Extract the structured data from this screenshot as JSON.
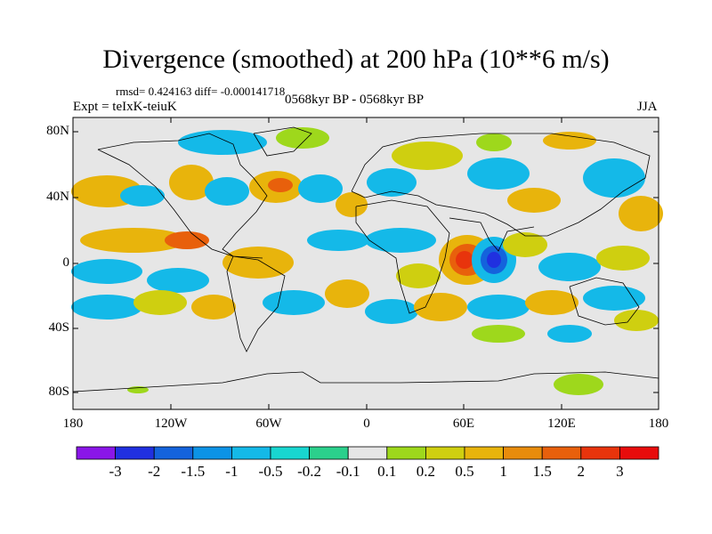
{
  "title": "Divergence (smoothed) at 200 hPa (10**6 m/s)",
  "stats": "rmsd= 0.424163 diff= -0.000141718",
  "experiment": "Expt = teIxK-teiuK",
  "period": "0568kyr BP - 0568kyr BP",
  "season": "JJA",
  "lat_labels": [
    "80N",
    "40N",
    "0",
    "40S",
    "80S"
  ],
  "lon_labels": [
    "180",
    "120W",
    "60W",
    "0",
    "60E",
    "120E",
    "180"
  ],
  "colorbar": {
    "labels": [
      "-3",
      "-2",
      "-1.5",
      "-1",
      "-0.5",
      "-0.2",
      "-0.1",
      "0.1",
      "0.2",
      "0.5",
      "1",
      "1.5",
      "2",
      "3"
    ],
    "colors": [
      "#8a16e8",
      "#2030e0",
      "#1463dc",
      "#0c93e6",
      "#14b9e8",
      "#18d6d0",
      "#2bd08c",
      "#e6e6e6",
      "#9ed81c",
      "#cfcf10",
      "#e8b40c",
      "#e88c0c",
      "#e8600c",
      "#e8340c",
      "#e80c0c"
    ]
  },
  "map_colors": {
    "background": "#e6e6e6",
    "coastline": "#000000"
  }
}
